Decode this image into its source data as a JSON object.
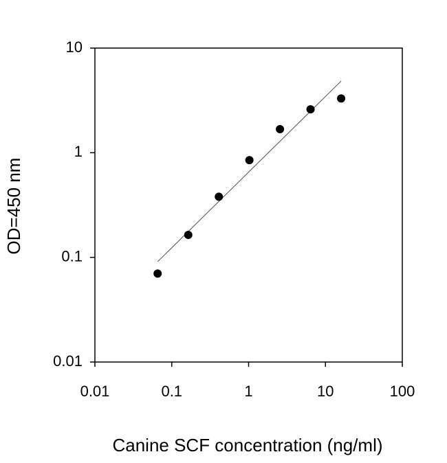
{
  "chart_data": {
    "type": "scatter",
    "x_label": "Canine SCF concentration (ng/ml)",
    "y_label": "OD=450 nm",
    "x_scale": "log",
    "y_scale": "log",
    "xlim": [
      0.01,
      100
    ],
    "ylim": [
      0.01,
      10
    ],
    "xticks": [
      0.01,
      0.1,
      1,
      10,
      100
    ],
    "yticks": [
      0.01,
      0.1,
      1,
      10
    ],
    "color": "#000000",
    "points": {
      "x": [
        0.0655,
        0.164,
        0.41,
        1.024,
        2.56,
        6.4,
        16
      ],
      "y": [
        0.07,
        0.164,
        0.38,
        0.85,
        1.68,
        2.6,
        3.3
      ]
    },
    "fit_line": {
      "x": [
        0.0655,
        16
      ],
      "y": [
        0.091,
        4.84
      ]
    }
  }
}
